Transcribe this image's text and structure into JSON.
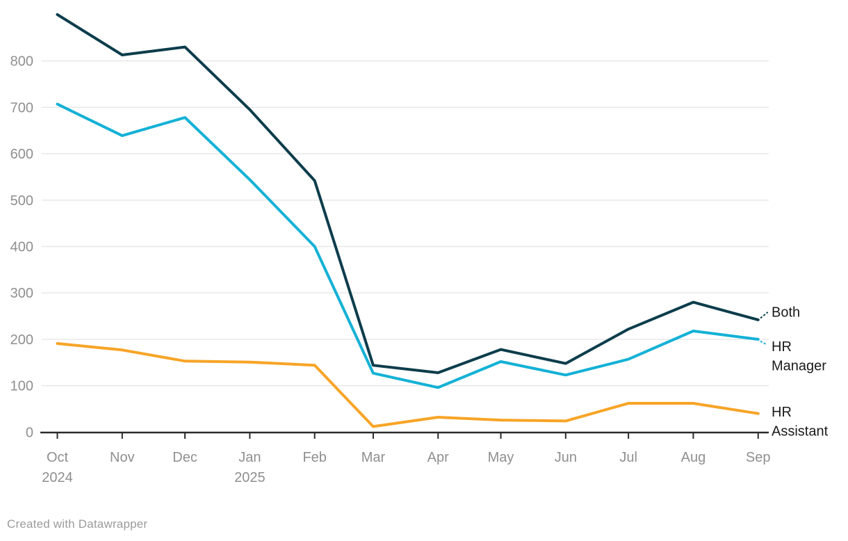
{
  "footer": {
    "attribution": "Created with Datawrapper"
  },
  "colors": {
    "axis": "#2b2b2b",
    "grid": "#e8e8e8",
    "tick_label": "#8f8f8f",
    "series_label": "#1a1a1a",
    "attribution": "#9b9b9b"
  },
  "chart_data": {
    "type": "line",
    "title": "",
    "xlabel": "",
    "ylabel": "",
    "grid": true,
    "legend_position": "line-end-labels-right",
    "x_axis": {
      "categories": [
        {
          "label": "Oct",
          "sublabel": "2024"
        },
        {
          "label": "Nov",
          "sublabel": ""
        },
        {
          "label": "Dec",
          "sublabel": ""
        },
        {
          "label": "Jan",
          "sublabel": "2025"
        },
        {
          "label": "Feb",
          "sublabel": ""
        },
        {
          "label": "Mar",
          "sublabel": ""
        },
        {
          "label": "Apr",
          "sublabel": ""
        },
        {
          "label": "May",
          "sublabel": ""
        },
        {
          "label": "Jun",
          "sublabel": ""
        },
        {
          "label": "Jul",
          "sublabel": ""
        },
        {
          "label": "Aug",
          "sublabel": ""
        },
        {
          "label": "Sep",
          "sublabel": ""
        }
      ]
    },
    "y_axis": {
      "ticks": [
        0,
        100,
        200,
        300,
        400,
        500,
        600,
        700,
        800
      ],
      "range": [
        0,
        905
      ]
    },
    "series": [
      {
        "name": "Both",
        "label_lines": [
          "Both"
        ],
        "color": "#0d3d4c",
        "values": [
          900,
          813,
          830,
          695,
          542,
          144,
          128,
          178,
          148,
          222,
          280,
          242
        ]
      },
      {
        "name": "HR Manager",
        "label_lines": [
          "HR",
          "Manager"
        ],
        "color": "#14b1d6",
        "values": [
          707,
          639,
          678,
          544,
          400,
          127,
          96,
          152,
          123,
          157,
          218,
          200
        ]
      },
      {
        "name": "HR Assistant",
        "label_lines": [
          "HR",
          "Assistant"
        ],
        "color": "#f7a426",
        "values": [
          191,
          177,
          153,
          151,
          144,
          12,
          32,
          26,
          24,
          62,
          62,
          40
        ]
      }
    ]
  }
}
